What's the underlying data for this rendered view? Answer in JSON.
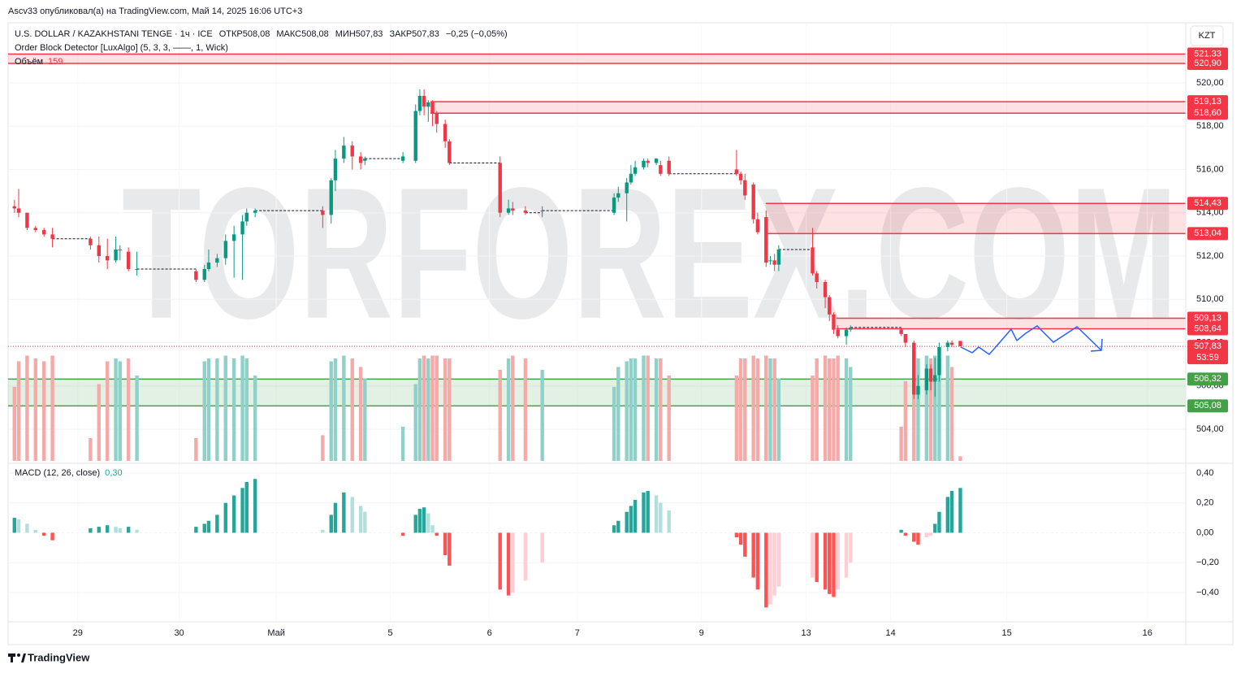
{
  "chart_data": {
    "type": "candlestick",
    "publisher": "Ascv33 опубликовал(а) на TradingView.com, Май 14, 2025 16:06 UTC+3",
    "title": "U.S. DOLLAR / KAZAKHSTANI TENGE · 1ч · ICE",
    "ohlc": [
      "ОТКР508,08",
      "МАКС508,08",
      "МИН507,83",
      "ЗАКР507,83"
    ],
    "change": "−0,25 (−0,05%)",
    "indicator": "Order Block Detector [LuxAlgo] (5, 3, 3, ——, 1, Wick)",
    "volume_name": "Объём",
    "macd_name": "MACD (12, 26, close)",
    "macd_value_label": "0,30",
    "currency": "KZT",
    "watermark": "TORFOREX.COM",
    "brand": "TradingView",
    "countdown": "53:59",
    "last_price": {
      "value": 507.83,
      "label": "507,83"
    },
    "up_color": "#089981",
    "down_color": "#f23645",
    "volume_colors": [
      "#8fd1c9",
      "#f6a9a7"
    ],
    "macd_colors": [
      "#26a69a",
      "#b2dfdb",
      "#ffcdd2",
      "#ff5252"
    ],
    "xlim": [
      -0.5,
      278
    ],
    "ylim": [
      502.54,
      522.7
    ],
    "volume_lim": [
      0,
      4000
    ],
    "macd_ylim": [
      -0.596,
      0.465
    ],
    "xticks": [
      {
        "value": 16,
        "label": "29"
      },
      {
        "value": 40,
        "label": "30"
      },
      {
        "value": 63,
        "label": "Май"
      },
      {
        "value": 90,
        "label": "5"
      },
      {
        "value": 113.5,
        "label": "6"
      },
      {
        "value": 134.3,
        "label": "7"
      },
      {
        "value": 163.7,
        "label": "9"
      },
      {
        "value": 188.5,
        "label": "13"
      },
      {
        "value": 208.5,
        "label": "14"
      },
      {
        "value": 236,
        "label": "15"
      },
      {
        "value": 269.3,
        "label": "16"
      }
    ],
    "yticks": [
      {
        "value": 504,
        "label": "504,00"
      },
      {
        "value": 506,
        "label": "506,00"
      },
      {
        "value": 508,
        "label": "508,00"
      },
      {
        "value": 510,
        "label": "510,00"
      },
      {
        "value": 512,
        "label": "512,00"
      },
      {
        "value": 514,
        "label": "514,00"
      },
      {
        "value": 516,
        "label": "516,00"
      },
      {
        "value": 518,
        "label": "518,00"
      },
      {
        "value": 520,
        "label": "520,00"
      }
    ],
    "macd_ticks": [
      {
        "value": 0.4,
        "label": "0,40"
      },
      {
        "value": 0.2,
        "label": "0,20"
      },
      {
        "value": 0,
        "label": "0,00"
      },
      {
        "value": -0.2,
        "label": "−0,20"
      },
      {
        "value": -0.4,
        "label": "−0,40"
      }
    ],
    "order_blocks": [
      {
        "top": {
          "value": 521.33,
          "label": "521,33"
        },
        "bottom": {
          "value": 520.9,
          "label": "520,90"
        },
        "start": -0.5,
        "color": "#f23645"
      },
      {
        "top": {
          "value": 519.13,
          "label": "519,13"
        },
        "bottom": {
          "value": 518.6,
          "label": "518,60"
        },
        "start": 99.5,
        "color": "#f23645"
      },
      {
        "top": {
          "value": 514.43,
          "label": "514,43"
        },
        "bottom": {
          "value": 513.04,
          "label": "513,04"
        },
        "start": 178.9,
        "color": "#f23645"
      },
      {
        "top": {
          "value": 509.13,
          "label": "509,13"
        },
        "bottom": {
          "value": 508.64,
          "label": "508,64"
        },
        "start": 195.6,
        "color": "#f23645"
      },
      {
        "top": {
          "value": 506.32,
          "label": "506,32"
        },
        "bottom": {
          "value": 505.08,
          "label": "505,08"
        },
        "start": -0.5,
        "color": "#43a047"
      }
    ],
    "x": [
      1,
      2,
      4,
      6,
      8,
      10,
      19,
      21,
      23,
      25,
      26,
      28,
      30,
      44,
      46,
      47,
      49,
      51,
      53,
      55,
      56,
      58,
      74,
      76,
      77,
      79,
      81,
      83,
      84,
      93,
      96,
      97,
      98,
      99,
      100,
      101,
      103,
      104,
      116,
      118,
      119,
      122,
      126,
      143,
      144,
      146,
      147,
      148,
      150,
      151,
      153,
      154,
      156,
      172,
      173,
      174,
      176,
      177,
      179,
      180,
      181,
      182,
      190,
      191,
      193,
      194,
      195,
      196,
      198,
      199,
      211,
      212,
      214,
      215,
      217,
      218,
      219,
      220,
      222,
      223,
      225
    ],
    "open": [
      514.3,
      514.2,
      514.0,
      513.3,
      513.2,
      513.0,
      512.8,
      512.5,
      512.0,
      511.8,
      512.3,
      512.2,
      511.4,
      511.3,
      510.9,
      511.4,
      511.7,
      511.9,
      512.7,
      513.0,
      513.6,
      514.0,
      514.1,
      513.9,
      515.5,
      516.5,
      517.1,
      516.6,
      516.4,
      516.4,
      516.4,
      518.7,
      519.4,
      518.9,
      519.1,
      518.6,
      518.1,
      517.3,
      516.3,
      514.0,
      514.2,
      514.1,
      514.1,
      514.0,
      514.7,
      514.9,
      515.4,
      515.8,
      516.1,
      516.4,
      516.3,
      516.2,
      516.4,
      516.0,
      515.8,
      515.5,
      515.3,
      513.7,
      513.8,
      511.8,
      511.8,
      511.6,
      512.4,
      511.2,
      510.8,
      510.1,
      509.3,
      508.6,
      508.3,
      508.6,
      508.6,
      508.4,
      508.0,
      505.6,
      505.8,
      506.8,
      506.2,
      506.5,
      507.8,
      508.0,
      508.08
    ],
    "high": [
      514.6,
      515.1,
      514.0,
      513.4,
      513.3,
      513.3,
      512.9,
      512.9,
      512.8,
      512.9,
      512.5,
      512.4,
      512.2,
      511.4,
      511.6,
      512.3,
      512.1,
      513.0,
      513.4,
      513.9,
      514.2,
      514.2,
      514.3,
      515.6,
      516.9,
      517.5,
      517.3,
      516.8,
      516.6,
      516.8,
      519.0,
      519.7,
      519.7,
      519.2,
      519.2,
      518.7,
      518.3,
      517.4,
      516.6,
      514.6,
      514.5,
      514.3,
      514.3,
      514.9,
      515.2,
      515.6,
      516.2,
      516.4,
      516.5,
      516.5,
      516.5,
      516.4,
      516.6,
      516.9,
      515.9,
      515.8,
      515.4,
      514.0,
      514.1,
      512.0,
      512.1,
      512.5,
      513.3,
      511.3,
      510.9,
      510.2,
      509.4,
      508.8,
      508.7,
      508.8,
      508.7,
      508.4,
      508.1,
      506.5,
      507.0,
      507.0,
      507.3,
      508.0,
      508.1,
      508.1,
      508.08
    ],
    "low": [
      514.0,
      513.8,
      513.2,
      513.1,
      512.9,
      512.4,
      512.3,
      511.7,
      511.4,
      511.7,
      511.8,
      511.3,
      511.1,
      510.8,
      510.8,
      511.3,
      511.5,
      511.6,
      511.0,
      510.9,
      513.4,
      513.8,
      513.3,
      513.5,
      515.0,
      516.3,
      516.0,
      516.0,
      516.2,
      516.3,
      516.3,
      518.5,
      518.5,
      518.2,
      518.0,
      517.7,
      517.0,
      516.2,
      513.8,
      513.9,
      513.9,
      513.9,
      513.8,
      513.9,
      514.5,
      513.6,
      515.3,
      515.7,
      516.0,
      516.1,
      516.2,
      515.7,
      515.7,
      515.7,
      515.3,
      514.6,
      513.5,
      513.0,
      511.5,
      511.6,
      511.3,
      511.3,
      511.1,
      510.5,
      509.6,
      509.0,
      508.4,
      508.2,
      507.9,
      508.5,
      508.3,
      507.8,
      505.4,
      505.4,
      505.6,
      505.8,
      505.5,
      506.2,
      507.6,
      507.8,
      507.83
    ],
    "close": [
      514.2,
      514.0,
      513.3,
      513.2,
      513.0,
      512.8,
      512.5,
      512.0,
      511.8,
      512.3,
      512.3,
      511.4,
      511.4,
      510.9,
      511.4,
      511.7,
      511.9,
      512.7,
      513.0,
      513.6,
      514.0,
      514.1,
      513.9,
      515.5,
      516.5,
      517.1,
      516.6,
      516.3,
      516.5,
      516.6,
      518.7,
      519.4,
      518.9,
      519.1,
      518.6,
      518.1,
      517.3,
      516.3,
      514.0,
      514.2,
      514.1,
      514.0,
      514.1,
      514.7,
      514.9,
      515.4,
      515.8,
      516.1,
      516.4,
      516.3,
      516.5,
      515.8,
      515.8,
      515.8,
      515.5,
      514.8,
      513.7,
      513.1,
      511.7,
      511.8,
      511.6,
      512.3,
      511.2,
      510.8,
      510.1,
      509.3,
      508.6,
      508.3,
      508.6,
      508.7,
      508.4,
      508.0,
      505.6,
      506.0,
      506.8,
      506.2,
      506.5,
      507.8,
      508.0,
      507.9,
      507.83
    ],
    "volume": [
      2600,
      3500,
      3700,
      3600,
      3500,
      3700,
      800,
      2700,
      3500,
      3600,
      3500,
      3600,
      3000,
      800,
      3500,
      3600,
      3600,
      3700,
      3600,
      3700,
      3600,
      3000,
      900,
      3500,
      3600,
      3700,
      3600,
      3300,
      2900,
      1200,
      2700,
      3600,
      3700,
      3600,
      3700,
      3700,
      3600,
      3600,
      3200,
      3600,
      3700,
      3600,
      3200,
      2600,
      3300,
      3500,
      3600,
      3600,
      3700,
      3700,
      3600,
      3600,
      3000,
      3000,
      3600,
      3600,
      3700,
      3600,
      3700,
      3600,
      3600,
      2900,
      3000,
      3600,
      3700,
      3600,
      3600,
      3700,
      3600,
      3300,
      1200,
      2800,
      3700,
      3600,
      3700,
      3600,
      3700,
      3600,
      3700,
      3300,
      159
    ],
    "macd": [
      0.1,
      0.09,
      0.06,
      0.02,
      -0.02,
      -0.05,
      0.03,
      0.04,
      0.05,
      0.04,
      0.03,
      0.04,
      0.02,
      0.04,
      0.06,
      0.08,
      0.12,
      0.2,
      0.25,
      0.3,
      0.34,
      0.36,
      0.02,
      0.12,
      0.2,
      0.27,
      0.24,
      0.18,
      0.14,
      -0.02,
      0.12,
      0.16,
      0.17,
      0.13,
      0.05,
      -0.02,
      -0.15,
      -0.22,
      -0.38,
      -0.42,
      -0.4,
      -0.32,
      -0.2,
      0.05,
      0.08,
      0.14,
      0.18,
      0.22,
      0.27,
      0.28,
      0.25,
      0.2,
      0.15,
      -0.03,
      -0.08,
      -0.16,
      -0.3,
      -0.38,
      -0.5,
      -0.48,
      -0.42,
      -0.36,
      -0.3,
      -0.33,
      -0.38,
      -0.41,
      -0.43,
      -0.38,
      -0.3,
      -0.2,
      0.02,
      -0.02,
      -0.06,
      -0.08,
      -0.03,
      -0.02,
      0.06,
      0.14,
      0.24,
      0.28,
      0.3
    ]
  }
}
